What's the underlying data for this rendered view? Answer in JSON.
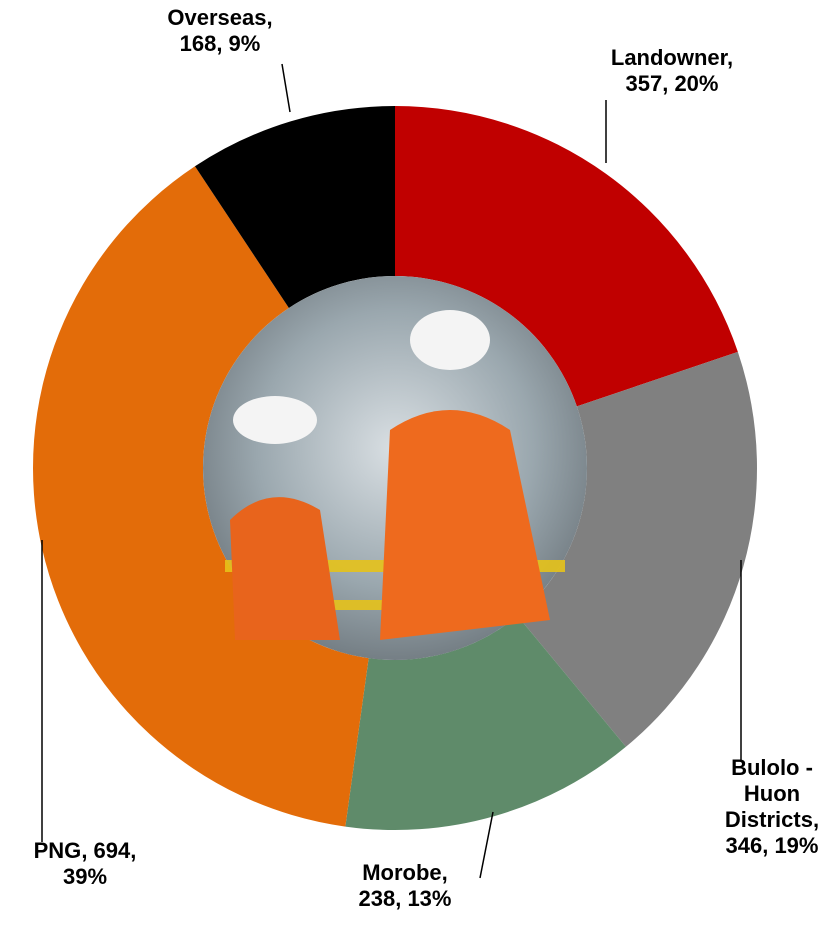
{
  "chart_data": {
    "type": "donut",
    "categories": [
      "Landowner",
      "Bulolo - Huon Districts",
      "Morobe",
      "PNG",
      "Overseas"
    ],
    "values": [
      357,
      346,
      238,
      694,
      168
    ],
    "value_labels": [
      ", 357, 20%",
      ", 346, 19%",
      ", 238, 13%",
      ", 694, 39%",
      ", 168, 9%"
    ],
    "colors": [
      "#c00000",
      "#808080",
      "#5f8b6a",
      "#e36c09",
      "#000000"
    ]
  }
}
